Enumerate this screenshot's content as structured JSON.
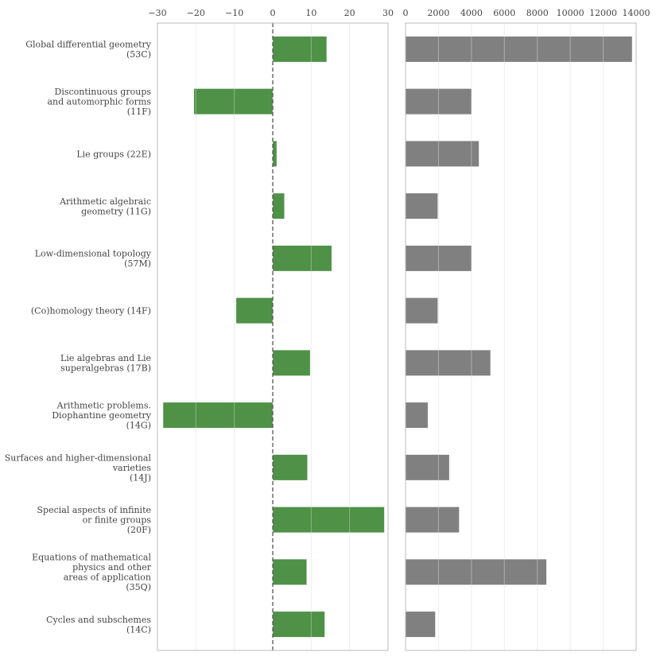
{
  "chart_data": [
    {
      "type": "bar",
      "orientation": "horizontal",
      "name": "change",
      "categories": [
        [
          "Global differential geometry",
          "(53C)"
        ],
        [
          "Discontinuous groups",
          "and automorphic forms",
          "(11F)"
        ],
        [
          "Lie groups (22E)"
        ],
        [
          "Arithmetic algebraic",
          "geometry (11G)"
        ],
        [
          "Low-dimensional topology",
          "(57M)"
        ],
        [
          "(Co)homology theory (14F)"
        ],
        [
          "Lie algebras and Lie",
          "superalgebras (17B)"
        ],
        [
          "Arithmetic problems.",
          "Diophantine geometry",
          "(14G)"
        ],
        [
          "Surfaces and higher-dimensional",
          "varieties",
          "(14J)"
        ],
        [
          "Special aspects of infinite",
          "or finite groups",
          "(20F)"
        ],
        [
          "Equations of mathematical",
          "physics and other",
          "areas of application",
          "(35Q)"
        ],
        [
          "Cycles and subschemes",
          "(14C)"
        ]
      ],
      "values": [
        14,
        -20.5,
        1,
        3,
        15.3,
        -9.5,
        9.7,
        -28.5,
        9,
        29,
        8.8,
        13.5
      ],
      "xlim": [
        -30,
        30
      ],
      "xticks": [
        -30,
        -20,
        -10,
        0,
        10,
        20,
        30
      ],
      "xtick_labels": [
        "−30",
        "−20",
        "−10",
        "0",
        "10",
        "20",
        "30"
      ],
      "zero_line": "dashed",
      "color": "#4f9147"
    },
    {
      "type": "bar",
      "orientation": "horizontal",
      "name": "counts",
      "values": [
        13750,
        4000,
        4450,
        1950,
        4000,
        1950,
        5150,
        1350,
        2650,
        3250,
        8550,
        1800
      ],
      "xlim": [
        0,
        14000
      ],
      "xticks": [
        0,
        2000,
        4000,
        6000,
        8000,
        10000,
        12000,
        14000
      ],
      "xtick_labels": [
        "0",
        "2000",
        "4000",
        "6000",
        "8000",
        "10000",
        "12000",
        "14000"
      ],
      "color": "#808080"
    }
  ],
  "colors": {
    "grid": "#e6e6e6",
    "frame": "#bbbbbb",
    "zero_line": "#555555",
    "text": "#444444"
  }
}
